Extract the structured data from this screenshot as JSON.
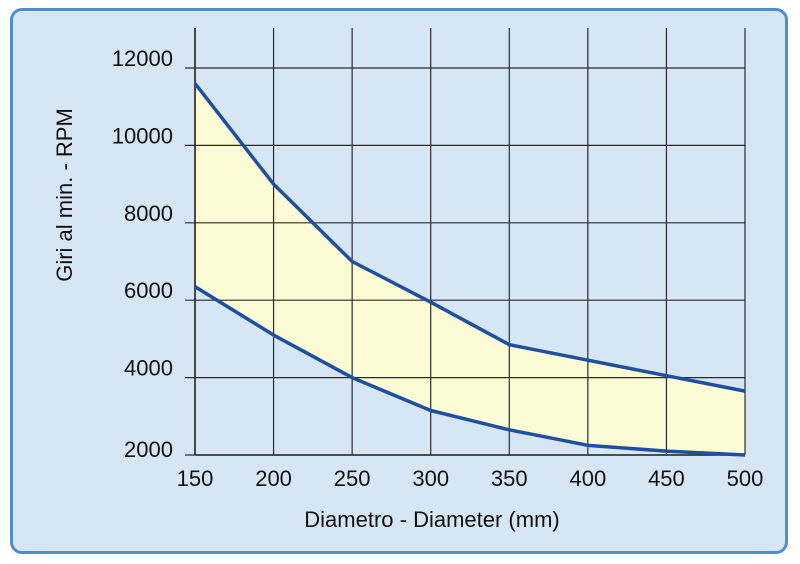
{
  "chart_data": {
    "type": "area",
    "title": "",
    "xlabel": "Diametro - Diameter (mm)",
    "ylabel": "Giri al min. - RPM",
    "x": [
      150,
      200,
      250,
      300,
      350,
      400,
      450,
      500
    ],
    "xlim": [
      150,
      500
    ],
    "ylim": [
      2000,
      13000
    ],
    "xticks": [
      150,
      200,
      250,
      300,
      350,
      400,
      450,
      500
    ],
    "yticks": [
      2000,
      4000,
      6000,
      8000,
      10000,
      12000
    ],
    "grid": true,
    "series": [
      {
        "values": [
          11600,
          9000,
          7000,
          5950,
          4850,
          4450,
          4050,
          3650
        ]
      },
      {
        "values": [
          6350,
          5100,
          4000,
          3150,
          2650,
          2250,
          2100,
          2000
        ]
      }
    ],
    "colors": {
      "background": "#d6e6f5",
      "fill": "#fdfbd6",
      "line": "#1f4fa0",
      "grid": "#2b2b2b",
      "border": "#4f8fd0"
    }
  }
}
